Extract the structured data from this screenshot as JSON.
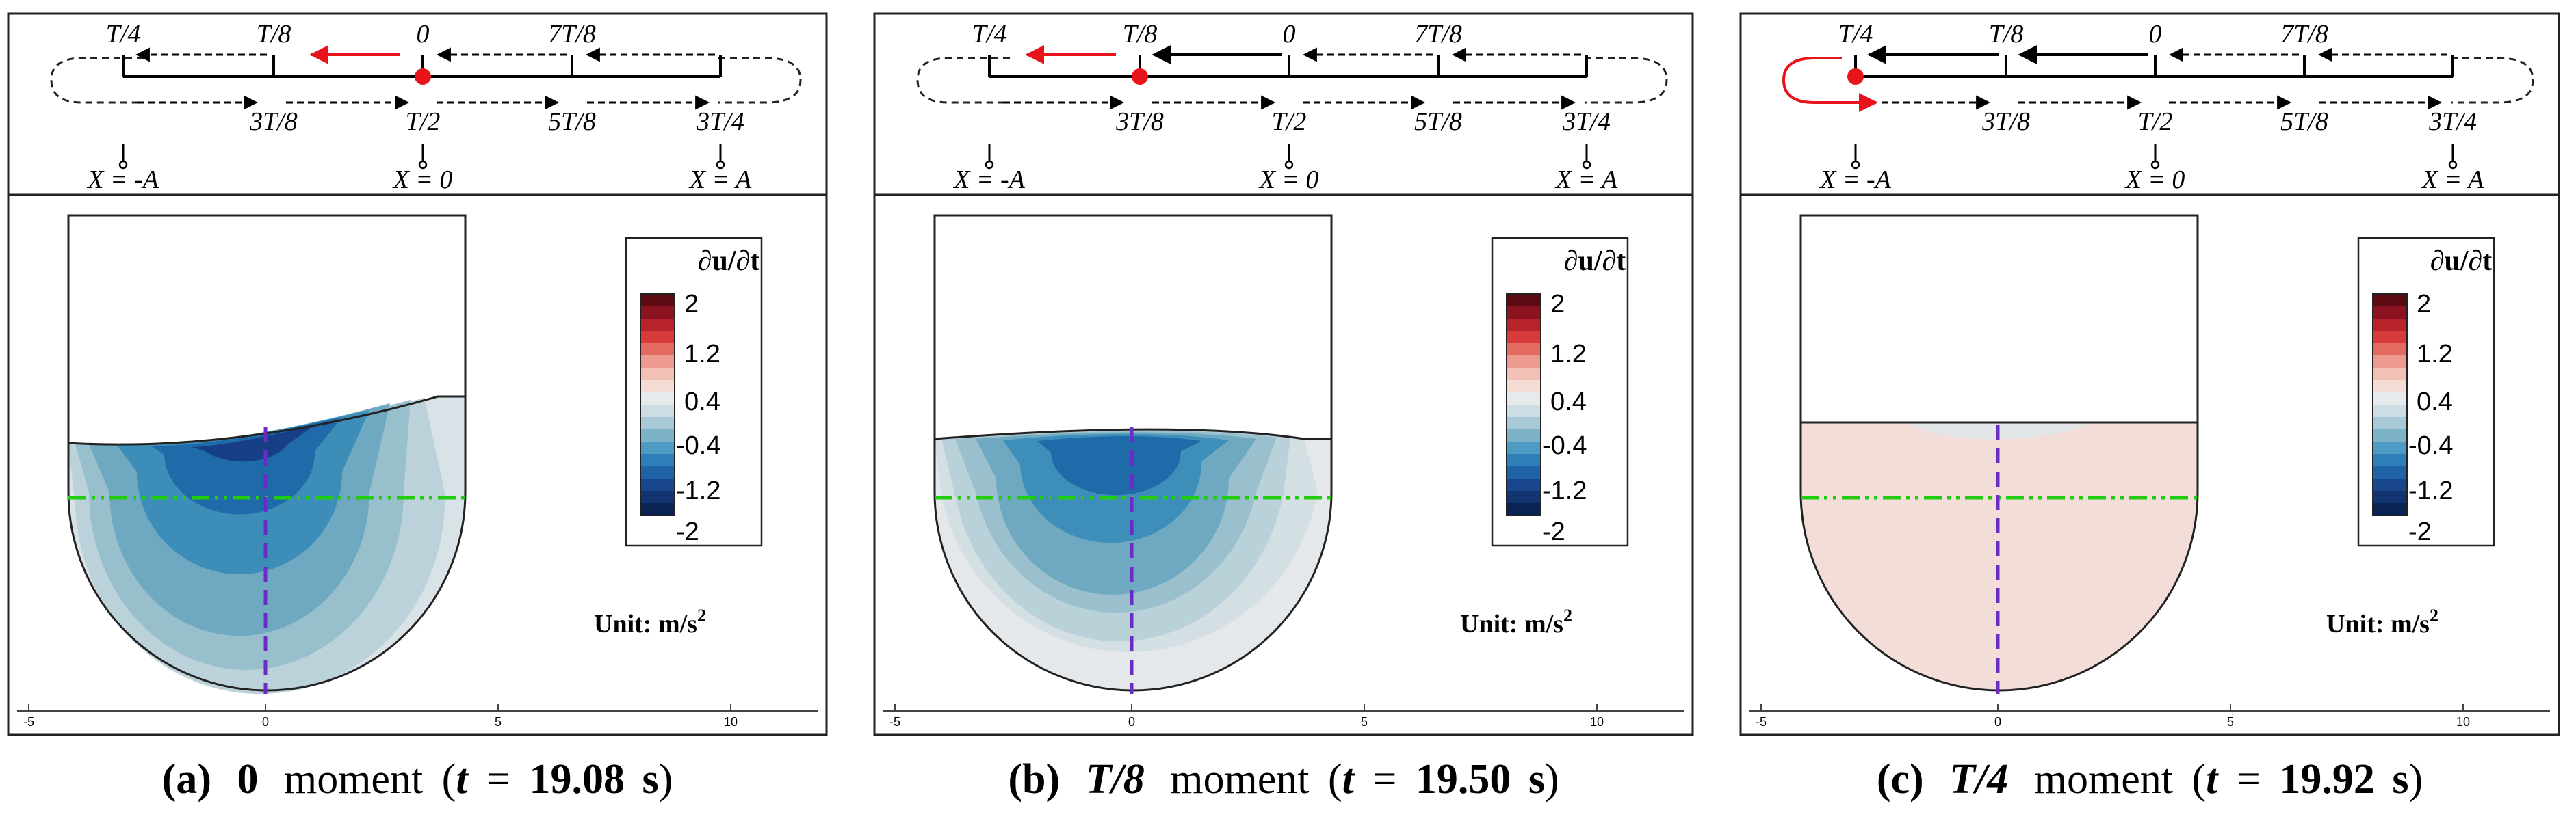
{
  "panels": [
    {
      "time_labels": {
        "top": [
          "T/4",
          "T/8",
          "0",
          "7T/8"
        ],
        "bottom": [
          "3T/8",
          "T/2",
          "5T/8",
          "3T/4"
        ]
      },
      "positions": [
        "X = -A",
        "X = 0",
        "X = A"
      ],
      "colorbar": {
        "title": "∂u/∂t",
        "ticks": [
          "2",
          "1.2",
          "0.4",
          "-0.4",
          "-1.2",
          "-2"
        ]
      },
      "unit": {
        "text": "Unit: m/s",
        "exp": "2"
      },
      "axis_ticks": [
        "-5",
        "0",
        "5",
        "10"
      ],
      "caption": {
        "letter": "(a)",
        "phase": "0",
        "word": "moment",
        "time": "19.08"
      }
    },
    {
      "time_labels": {
        "top": [
          "T/4",
          "T/8",
          "0",
          "7T/8"
        ],
        "bottom": [
          "3T/8",
          "T/2",
          "5T/8",
          "3T/4"
        ]
      },
      "positions": [
        "X = -A",
        "X = 0",
        "X = A"
      ],
      "colorbar": {
        "title": "∂u/∂t",
        "ticks": [
          "2",
          "1.2",
          "0.4",
          "-0.4",
          "-1.2",
          "-2"
        ]
      },
      "unit": {
        "text": "Unit: m/s",
        "exp": "2"
      },
      "axis_ticks": [
        "-5",
        "0",
        "5",
        "10"
      ],
      "caption": {
        "letter": "(b)",
        "phase": "T/8",
        "word": "moment",
        "time": "19.50"
      }
    },
    {
      "time_labels": {
        "top": [
          "T/4",
          "T/8",
          "0",
          "7T/8"
        ],
        "bottom": [
          "3T/8",
          "T/2",
          "5T/8",
          "3T/4"
        ]
      },
      "positions": [
        "X = -A",
        "X = 0",
        "X = A"
      ],
      "colorbar": {
        "title": "∂u/∂t",
        "ticks": [
          "2",
          "1.2",
          "0.4",
          "-0.4",
          "-1.2",
          "-2"
        ]
      },
      "unit": {
        "text": "Unit: m/s",
        "exp": "2"
      },
      "axis_ticks": [
        "-5",
        "0",
        "5",
        "10"
      ],
      "caption": {
        "letter": "(c)",
        "phase": "T/4",
        "word": "moment",
        "time": "19.92"
      }
    }
  ],
  "caption_shared": {
    "t": "t",
    "eq": "=",
    "s": "s"
  },
  "colors": {
    "red": "#e8141c",
    "green": "#22cc11",
    "purple": "#6a2cc4",
    "blue_dark": "#0b2f6e",
    "red_dark": "#5c0a12",
    "pink_field": "#f2ddd9"
  }
}
